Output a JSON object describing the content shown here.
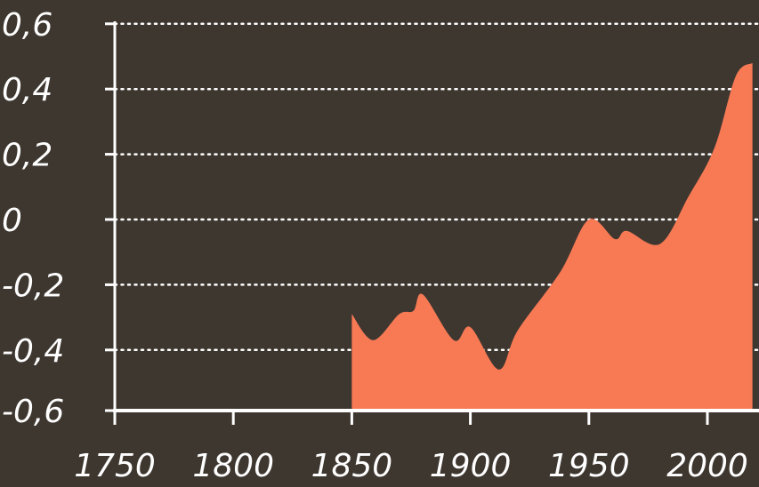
{
  "chart_data": {
    "type": "area",
    "title": "",
    "xlabel": "",
    "ylabel": "",
    "xlim": [
      1750,
      2019
    ],
    "ylim": [
      -0.6,
      0.6
    ],
    "x_ticks": [
      1750,
      1800,
      1850,
      1900,
      1950,
      2000
    ],
    "x_tick_labels": [
      "1750",
      "1800",
      "1850",
      "1900",
      "1950",
      "2000"
    ],
    "y_ticks": [
      -0.6,
      -0.4,
      -0.2,
      0,
      0.2,
      0.4,
      0.6
    ],
    "y_tick_labels": [
      "-0,6",
      "-0,4",
      "-0,2",
      "0",
      "0,2",
      "0,4",
      "0,6"
    ],
    "grid": "horizontal dotted",
    "colors": {
      "background": "#3e3730",
      "fill": "#f87a55",
      "axis": "#ffffff"
    },
    "series": [
      {
        "x": [
          1850,
          1859,
          1870,
          1876,
          1880,
          1893,
          1900,
          1912,
          1920,
          1938,
          1950,
          1961,
          1966,
          1980,
          1992,
          2003,
          2012,
          2019
        ],
        "values": [
          -0.29,
          -0.37,
          -0.29,
          -0.28,
          -0.23,
          -0.37,
          -0.33,
          -0.46,
          -0.34,
          -0.16,
          0.0,
          -0.06,
          -0.035,
          -0.075,
          0.07,
          0.22,
          0.44,
          0.48
        ]
      }
    ]
  }
}
